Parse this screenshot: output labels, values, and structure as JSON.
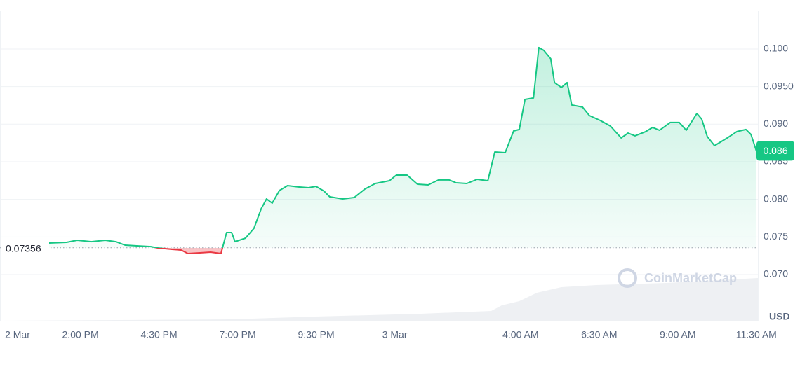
{
  "chart_data": {
    "type": "line",
    "x": [
      13.0,
      13.56,
      13.9,
      14.34,
      14.79,
      15.13,
      15.42,
      15.79,
      16.24,
      16.46,
      16.91,
      17.2,
      17.42,
      17.8,
      18.14,
      18.47,
      18.65,
      18.81,
      18.92,
      19.25,
      19.52,
      19.75,
      19.92,
      20.1,
      20.33,
      20.59,
      20.93,
      21.26,
      21.49,
      21.75,
      21.93,
      22.34,
      22.71,
      23.05,
      23.38,
      23.83,
      24.05,
      24.39,
      24.72,
      25.06,
      25.39,
      25.73,
      25.95,
      26.29,
      26.62,
      26.96,
      27.18,
      27.51,
      27.78,
      27.96,
      28.14,
      28.41,
      28.58,
      28.74,
      28.96,
      29.08,
      29.3,
      29.48,
      29.63,
      29.97,
      30.19,
      30.53,
      30.86,
      31.2,
      31.42,
      31.64,
      31.98,
      32.2,
      32.42,
      32.76,
      33.05,
      33.27,
      33.61,
      33.76,
      33.94,
      34.17,
      34.54,
      34.88,
      35.17,
      35.33,
      35.5
    ],
    "series": [
      {
        "color": "#16c784",
        "values": [
          0.07419,
          0.07428,
          0.07456,
          0.07437,
          0.07456,
          0.07437,
          0.07391,
          0.07382,
          0.07372,
          0.07354,
          0.07335,
          0.07326,
          0.07279,
          0.07289,
          0.07298,
          0.07279,
          0.07559,
          0.07559,
          0.07437,
          0.07484,
          0.07615,
          0.07876,
          0.08006,
          0.0795,
          0.08118,
          0.08183,
          0.08165,
          0.08155,
          0.08174,
          0.08109,
          0.08034,
          0.08006,
          0.08025,
          0.08137,
          0.08211,
          0.08248,
          0.08323,
          0.08323,
          0.08202,
          0.08192,
          0.08258,
          0.08258,
          0.0822,
          0.08211,
          0.08267,
          0.08248,
          0.0863,
          0.08621,
          0.0891,
          0.08929,
          0.09329,
          0.09348,
          0.10019,
          0.09981,
          0.0987,
          0.09553,
          0.09488,
          0.09553,
          0.09255,
          0.09227,
          0.09115,
          0.0905,
          0.08975,
          0.08817,
          0.08882,
          0.08845,
          0.08901,
          0.08957,
          0.08919,
          0.09022,
          0.09022,
          0.08919,
          0.09143,
          0.09068,
          0.08835,
          0.08714,
          0.08808,
          0.08901,
          0.08929,
          0.08863,
          0.08645
        ]
      }
    ],
    "below_color": "#ea3943",
    "baseline": 0.07356,
    "last_value_label": "0.086",
    "watermark": "CoinMarketCap",
    "currency": "USD",
    "xlim": [
      11.442,
      35.549
    ],
    "ylim": [
      0.06385,
      0.10512
    ],
    "xticks": [
      {
        "value": 12,
        "label": "2 Mar"
      },
      {
        "value": 14,
        "label": "2:00 PM"
      },
      {
        "value": 16.5,
        "label": "4:30 PM"
      },
      {
        "value": 19,
        "label": "7:00 PM"
      },
      {
        "value": 21.5,
        "label": "9:30 PM"
      },
      {
        "value": 24,
        "label": "3 Mar"
      },
      {
        "value": 28,
        "label": "4:00 AM"
      },
      {
        "value": 30.5,
        "label": "6:30 AM"
      },
      {
        "value": 33,
        "label": "9:00 AM"
      },
      {
        "value": 35.5,
        "label": "11:30 AM"
      }
    ],
    "yticks": [
      {
        "value": 0.07,
        "label": "0.070"
      },
      0.075,
      {
        "value": 0.08,
        "label": "0.080"
      },
      0.085,
      {
        "value": 0.09,
        "label": "0.090"
      },
      {
        "value": 0.095,
        "label": "0.0950"
      },
      {
        "value": 0.1,
        "label": "0.100"
      }
    ],
    "grid": true
  }
}
